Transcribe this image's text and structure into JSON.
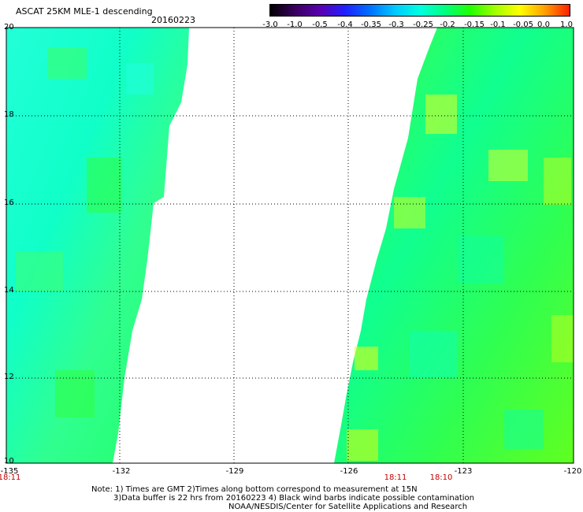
{
  "header": {
    "title": "ASCAT 25KM MLE-1 descending",
    "date": "20160223"
  },
  "colorbar": {
    "tick_labels": [
      "-3.0",
      "-1.0",
      "-0.5",
      "-0.4",
      "-0.35",
      "-0.3",
      "-0.25",
      "-0.2",
      "-0.15",
      "-0.1",
      "-0.05",
      "0.0",
      "1.0"
    ],
    "colors": [
      "#000000",
      "#3a0060",
      "#5a00b0",
      "#2020ff",
      "#0070ff",
      "#00c8ff",
      "#00ffe0",
      "#00ff80",
      "#20ff00",
      "#a0ff00",
      "#ffff00",
      "#ffa000",
      "#ff2000"
    ]
  },
  "map": {
    "lat_labels": [
      "20",
      "18",
      "16",
      "14",
      "12",
      "10"
    ],
    "lon_labels": [
      "-135",
      "-132",
      "-129",
      "-126",
      "-123",
      "-120"
    ],
    "time_labels": [
      "18:11",
      "18:11",
      "18:10"
    ]
  },
  "notes": [
    "Note: 1) Times are GMT 2)Times along bottom correspond to measurement at 15N",
    "3)Data buffer is 22 hrs from 20160223 4) Black wind barbs indicate possible contamination",
    "NOAA/NESDIS/Center for Satellite Applications and Research"
  ]
}
